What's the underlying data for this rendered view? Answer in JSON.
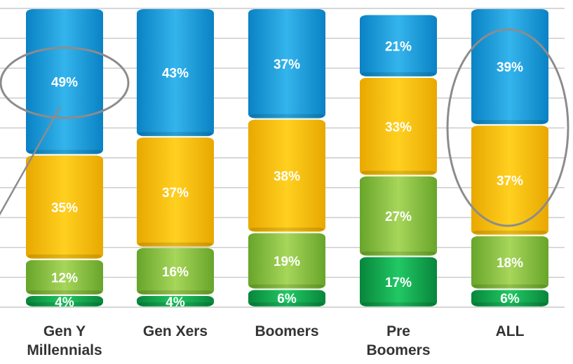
{
  "chart_data": {
    "type": "bar",
    "stacked": true,
    "title": "",
    "xlabel": "",
    "ylabel": "",
    "ylim": [
      0,
      100
    ],
    "grid": true,
    "categories": [
      "Gen Y\nMillennials",
      "Gen Xers",
      "Boomers",
      "Pre\nBoomers",
      "ALL"
    ],
    "series": [
      {
        "color": "#0e9e4a",
        "values": [
          4,
          4,
          6,
          17,
          6
        ]
      },
      {
        "color": "#7dbb35",
        "values": [
          12,
          16,
          19,
          27,
          18
        ]
      },
      {
        "color": "#f2b800",
        "values": [
          35,
          37,
          38,
          33,
          37
        ]
      },
      {
        "color": "#1a9ad8",
        "values": [
          49,
          43,
          37,
          21,
          39
        ]
      }
    ],
    "data_labels": [
      [
        "4%",
        "4%",
        "6%",
        "17%",
        "6%"
      ],
      [
        "12%",
        "16%",
        "19%",
        "27%",
        "18%"
      ],
      [
        "35%",
        "37%",
        "38%",
        "33%",
        "37%"
      ],
      [
        "49%",
        "43%",
        "37%",
        "21%",
        "39%"
      ]
    ],
    "highlights": [
      {
        "category": "Gen Y\nMillennials",
        "segment": 3,
        "shape": "ellipse",
        "with_pointer_line": true
      },
      {
        "category": "ALL",
        "segments": [
          2,
          3
        ],
        "shape": "ellipse"
      }
    ]
  }
}
